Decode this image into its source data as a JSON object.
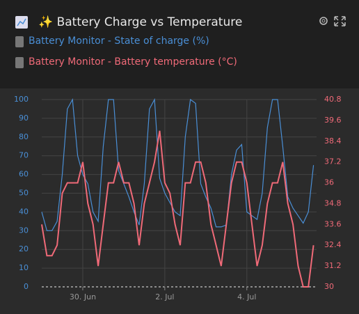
{
  "chart_data": {
    "type": "line",
    "title": "✨ Battery Charge vs Temperature",
    "x": [
      0,
      0.125,
      0.25,
      0.375,
      0.5,
      0.625,
      0.75,
      0.875,
      1,
      1.125,
      1.25,
      1.375,
      1.5,
      1.625,
      1.75,
      1.875,
      2,
      2.125,
      2.25,
      2.375,
      2.5,
      2.625,
      2.75,
      2.875,
      3,
      3.125,
      3.25,
      3.375,
      3.5,
      3.625,
      3.75,
      3.875,
      4,
      4.125,
      4.25,
      4.375,
      4.5,
      4.625,
      4.75,
      4.875,
      5,
      5.125,
      5.25,
      5.375,
      5.5,
      5.625,
      5.75,
      5.875,
      6,
      6.125,
      6.25,
      6.375,
      6.5,
      6.625
    ],
    "xlim": [
      0,
      6.7
    ],
    "xticks": [
      {
        "value": 1,
        "label": "30. Jun"
      },
      {
        "value": 3,
        "label": "2. Jul"
      },
      {
        "value": 5,
        "label": "4. Jul"
      }
    ],
    "ylim": [
      0,
      100
    ],
    "yticks": [
      0,
      10,
      20,
      30,
      40,
      50,
      60,
      70,
      80,
      90,
      100
    ],
    "y2lim": [
      30,
      40.8
    ],
    "y2ticks": [
      30,
      31.2,
      32.4,
      33.6,
      34.8,
      36,
      37.2,
      38.4,
      39.6,
      40.8
    ],
    "grid": true,
    "series": [
      {
        "name": "Battery Monitor - State of charge (%)",
        "color": "#4a8fd6",
        "values": [
          40,
          30,
          30,
          35,
          60,
          95,
          100,
          70,
          60,
          55,
          40,
          35,
          75,
          100,
          100,
          62,
          55,
          48,
          40,
          33,
          55,
          95,
          100,
          58,
          50,
          45,
          40,
          38,
          80,
          100,
          98,
          55,
          48,
          42,
          32,
          32,
          33,
          60,
          73,
          76,
          40,
          38,
          36,
          50,
          85,
          100,
          100,
          75,
          48,
          42,
          38,
          34,
          40,
          65
        ]
      },
      {
        "name": "Battery Monitor - Battery temperature (°C)",
        "color": "#f06a78",
        "axis": "y2",
        "values": [
          33.6,
          31.8,
          31.8,
          32.4,
          35.4,
          36,
          36,
          36,
          37.2,
          34.8,
          33.6,
          31.2,
          33.6,
          36,
          36,
          37.2,
          36,
          36,
          34.8,
          32.4,
          34.8,
          36,
          37.2,
          39,
          36,
          35.4,
          33.6,
          32.4,
          36,
          36,
          37.2,
          37.2,
          36,
          33.6,
          32.4,
          31.2,
          33.6,
          36,
          37.2,
          37.2,
          36,
          33.6,
          31.2,
          32.4,
          34.8,
          36,
          36,
          37.2,
          34.8,
          33.6,
          31.2,
          30,
          30,
          32.4
        ]
      }
    ]
  }
}
